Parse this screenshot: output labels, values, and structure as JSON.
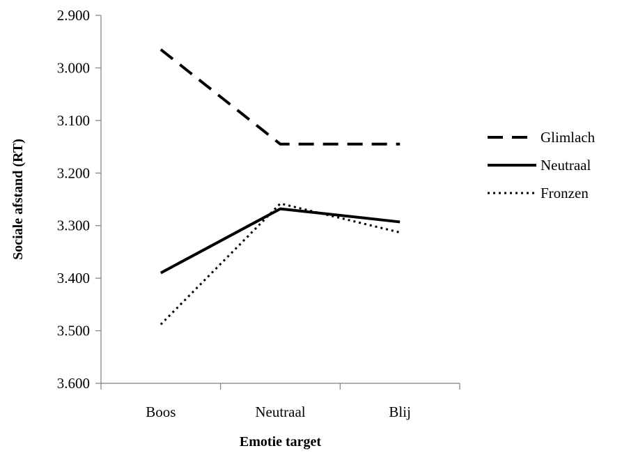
{
  "chart_data": {
    "type": "line",
    "title": "",
    "xlabel": "Emotie target",
    "ylabel": "Sociale afstand (RT)",
    "categories": [
      "Boos",
      "Neutraal",
      "Blij"
    ],
    "y_axis": {
      "min": 2900,
      "max": 3600,
      "reversed": true,
      "ticks": [
        2900,
        3000,
        3100,
        3200,
        3300,
        3400,
        3500,
        3600
      ],
      "tick_labels": [
        "2.900",
        "3.000",
        "3.100",
        "3.200",
        "3.300",
        "3.400",
        "3.500",
        "3.600"
      ]
    },
    "grid": false,
    "legend_position": "right",
    "series": [
      {
        "name": "Glimlach",
        "style": "dashed",
        "color": "#000000",
        "values": [
          2965,
          3145,
          3145
        ]
      },
      {
        "name": "Neutraal",
        "style": "solid",
        "color": "#000000",
        "values": [
          3390,
          3268,
          3293
        ]
      },
      {
        "name": "Fronzen",
        "style": "dotted",
        "color": "#000000",
        "values": [
          3488,
          3258,
          3313
        ]
      }
    ]
  }
}
